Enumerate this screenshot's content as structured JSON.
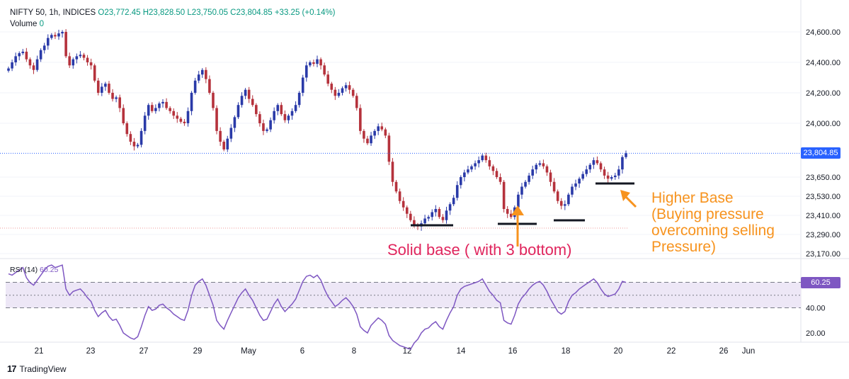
{
  "header": {
    "symbol": "NIFTY 50, 1h, INDICES",
    "open": "O23,772.45",
    "high": "H23,828.50",
    "low": "L23,750.05",
    "close": "C23,804.85",
    "change": "+33.25 (+0.14%)",
    "volume_label": "Volume",
    "volume_value": "0"
  },
  "rsi": {
    "label": "RSI (14)",
    "value": "60.25"
  },
  "last_price": "23,804.85",
  "annotations": {
    "solid_base": "Solid base ( with 3 bottom)",
    "higher_base": "Higher Base\n(Buying pressure\novercoming selling\nPressure)"
  },
  "brand": "TradingView",
  "colors": {
    "up": "#2a3aa8",
    "down": "#b5323c",
    "rsi_line": "#7e57c2",
    "rsi_band": "#ede7f6",
    "price_line": "#2962ff",
    "annotation_pink": "#e0255d",
    "annotation_orange": "#f7931e",
    "grid": "#f0f3fa"
  },
  "chart_data": [
    {
      "type": "candlestick",
      "title": "NIFTY 50, 1h, INDICES",
      "price_axis_ticks": [
        24600,
        24400,
        24200,
        24000,
        23650,
        23530,
        23410,
        23290,
        23170
      ],
      "price_axis_labels": [
        "24,600.00",
        "24,400.00",
        "24,200.00",
        "24,000.00",
        "23,650.00",
        "23,530.00",
        "23,410.00",
        "23,290.00",
        "23,170.00"
      ],
      "date_labels": [
        "21",
        "23",
        "27",
        "29",
        "May",
        "6",
        "8",
        "12",
        "14",
        "16",
        "18",
        "20",
        "22",
        "26",
        "Jun"
      ],
      "closes": [
        24360,
        24400,
        24440,
        24460,
        24470,
        24420,
        24380,
        24350,
        24420,
        24480,
        24510,
        24560,
        24580,
        24570,
        24590,
        24600,
        24440,
        24380,
        24420,
        24440,
        24450,
        24430,
        24400,
        24380,
        24280,
        24200,
        24240,
        24260,
        24200,
        24160,
        24170,
        24100,
        24000,
        23930,
        23880,
        23850,
        23860,
        23950,
        24050,
        24120,
        24080,
        24100,
        24130,
        24140,
        24100,
        24080,
        24050,
        24030,
        24010,
        24000,
        24080,
        24200,
        24280,
        24320,
        24350,
        24290,
        24200,
        24100,
        23950,
        23880,
        23830,
        23900,
        23970,
        24040,
        24120,
        24180,
        24220,
        24160,
        24120,
        24060,
        24000,
        23950,
        23960,
        24020,
        24080,
        24120,
        24060,
        24020,
        24050,
        24080,
        24120,
        24200,
        24300,
        24380,
        24400,
        24390,
        24420,
        24380,
        24320,
        24260,
        24220,
        24180,
        24200,
        24230,
        24250,
        24220,
        24180,
        24100,
        23950,
        23900,
        23870,
        23920,
        23950,
        23980,
        23960,
        23920,
        23750,
        23620,
        23560,
        23500,
        23460,
        23420,
        23380,
        23350,
        23340,
        23360,
        23390,
        23400,
        23430,
        23450,
        23400,
        23380,
        23440,
        23480,
        23520,
        23600,
        23650,
        23680,
        23700,
        23720,
        23740,
        23760,
        23790,
        23760,
        23720,
        23690,
        23650,
        23620,
        23450,
        23420,
        23400,
        23460,
        23540,
        23590,
        23620,
        23660,
        23700,
        23730,
        23740,
        23720,
        23680,
        23620,
        23560,
        23500,
        23470,
        23480,
        23540,
        23590,
        23610,
        23640,
        23670,
        23700,
        23730,
        23760,
        23740,
        23700,
        23660,
        23640,
        23650,
        23660,
        23700,
        23780,
        23804.85
      ],
      "rsi_values": [
        67,
        66,
        68,
        70,
        72,
        64,
        60,
        58,
        62,
        66,
        70,
        73,
        74,
        72,
        73,
        74,
        55,
        50,
        53,
        54,
        55,
        52,
        48,
        45,
        38,
        33,
        36,
        38,
        33,
        30,
        31,
        26,
        20,
        18,
        16,
        15,
        17,
        25,
        34,
        41,
        38,
        39,
        42,
        43,
        40,
        38,
        35,
        33,
        31,
        30,
        38,
        50,
        58,
        61,
        63,
        58,
        50,
        42,
        30,
        26,
        23,
        30,
        36,
        42,
        48,
        52,
        55,
        50,
        46,
        40,
        34,
        30,
        31,
        37,
        43,
        47,
        41,
        37,
        40,
        43,
        47,
        54,
        61,
        65,
        66,
        64,
        66,
        62,
        55,
        49,
        45,
        41,
        43,
        46,
        48,
        45,
        41,
        35,
        25,
        22,
        20,
        26,
        29,
        32,
        30,
        27,
        18,
        14,
        12,
        10,
        9,
        8,
        7,
        12,
        15,
        20,
        23,
        24,
        27,
        29,
        25,
        23,
        30,
        36,
        41,
        50,
        55,
        57,
        58,
        59,
        60,
        61,
        63,
        58,
        53,
        50,
        46,
        44,
        30,
        28,
        27,
        34,
        43,
        48,
        51,
        55,
        58,
        60,
        61,
        58,
        53,
        47,
        42,
        37,
        35,
        37,
        45,
        50,
        52,
        55,
        57,
        59,
        61,
        63,
        60,
        55,
        51,
        49,
        50,
        51,
        55,
        61,
        60.25
      ],
      "rsi_ticks": [
        40,
        60,
        20
      ],
      "rsi_tick_labels": [
        "40.00",
        "60.25",
        "20.00"
      ]
    }
  ]
}
